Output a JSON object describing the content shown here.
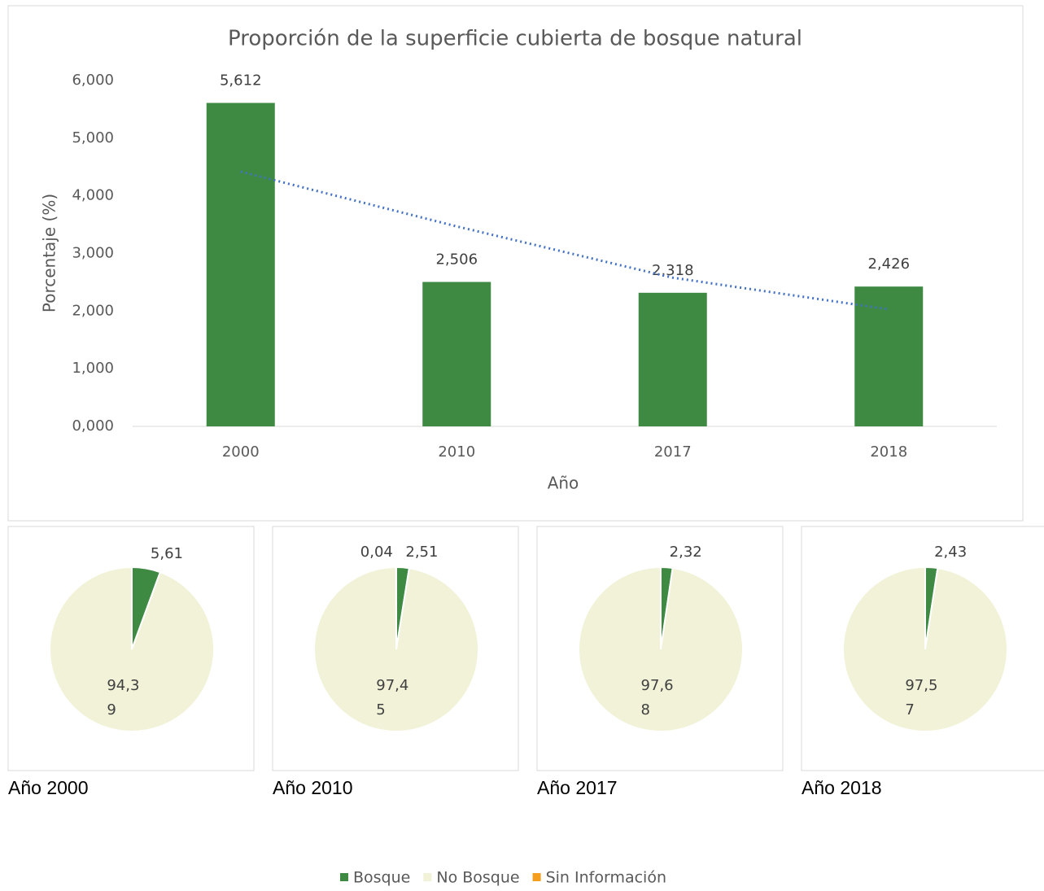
{
  "chart_data": [
    {
      "type": "bar",
      "title": "Proporción de la superficie cubierta de bosque natural",
      "x_label": "Año",
      "y_label": "Porcentaje (%)",
      "categories": [
        "2000",
        "2010",
        "2017",
        "2018"
      ],
      "values": [
        5.612,
        2.506,
        2.318,
        2.426
      ],
      "value_labels": [
        "5,612",
        "2,506",
        "2,318",
        "2,426"
      ],
      "color": "#3e8a42",
      "trendline": {
        "color": "#4472c4",
        "values": [
          4.42,
          3.47,
          2.58,
          2.03
        ]
      },
      "ylim": [
        0,
        6
      ],
      "yticks": [
        {
          "value": 0,
          "label": "0,000"
        },
        {
          "value": 1,
          "label": "1,000"
        },
        {
          "value": 2,
          "label": "2,000"
        },
        {
          "value": 3,
          "label": "3,000"
        },
        {
          "value": 4,
          "label": "4,000"
        },
        {
          "value": 5,
          "label": "5,000"
        },
        {
          "value": 6,
          "label": "6,000"
        }
      ]
    },
    {
      "type": "pie",
      "caption": "Año 2000",
      "values": [
        5.61,
        94.39,
        0
      ],
      "value_labels": [
        "5,61",
        "94,3\n9",
        null
      ]
    },
    {
      "type": "pie",
      "caption": "Año 2010",
      "values": [
        2.51,
        97.45,
        0.04
      ],
      "value_labels": [
        "2,51",
        "97,4\n5",
        "0,04"
      ]
    },
    {
      "type": "pie",
      "caption": "Año 2017",
      "values": [
        2.32,
        97.68,
        0
      ],
      "value_labels": [
        "2,32",
        "97,6\n8",
        null
      ]
    },
    {
      "type": "pie",
      "caption": "Año 2018",
      "values": [
        2.43,
        97.57,
        0
      ],
      "value_labels": [
        "2,43",
        "97,5\n7",
        null
      ]
    }
  ],
  "legend": {
    "labels": [
      "Bosque",
      "No Bosque",
      "Sin Información"
    ],
    "colors": [
      "#3e8a42",
      "#f2f2d8",
      "#f59d1c"
    ]
  }
}
